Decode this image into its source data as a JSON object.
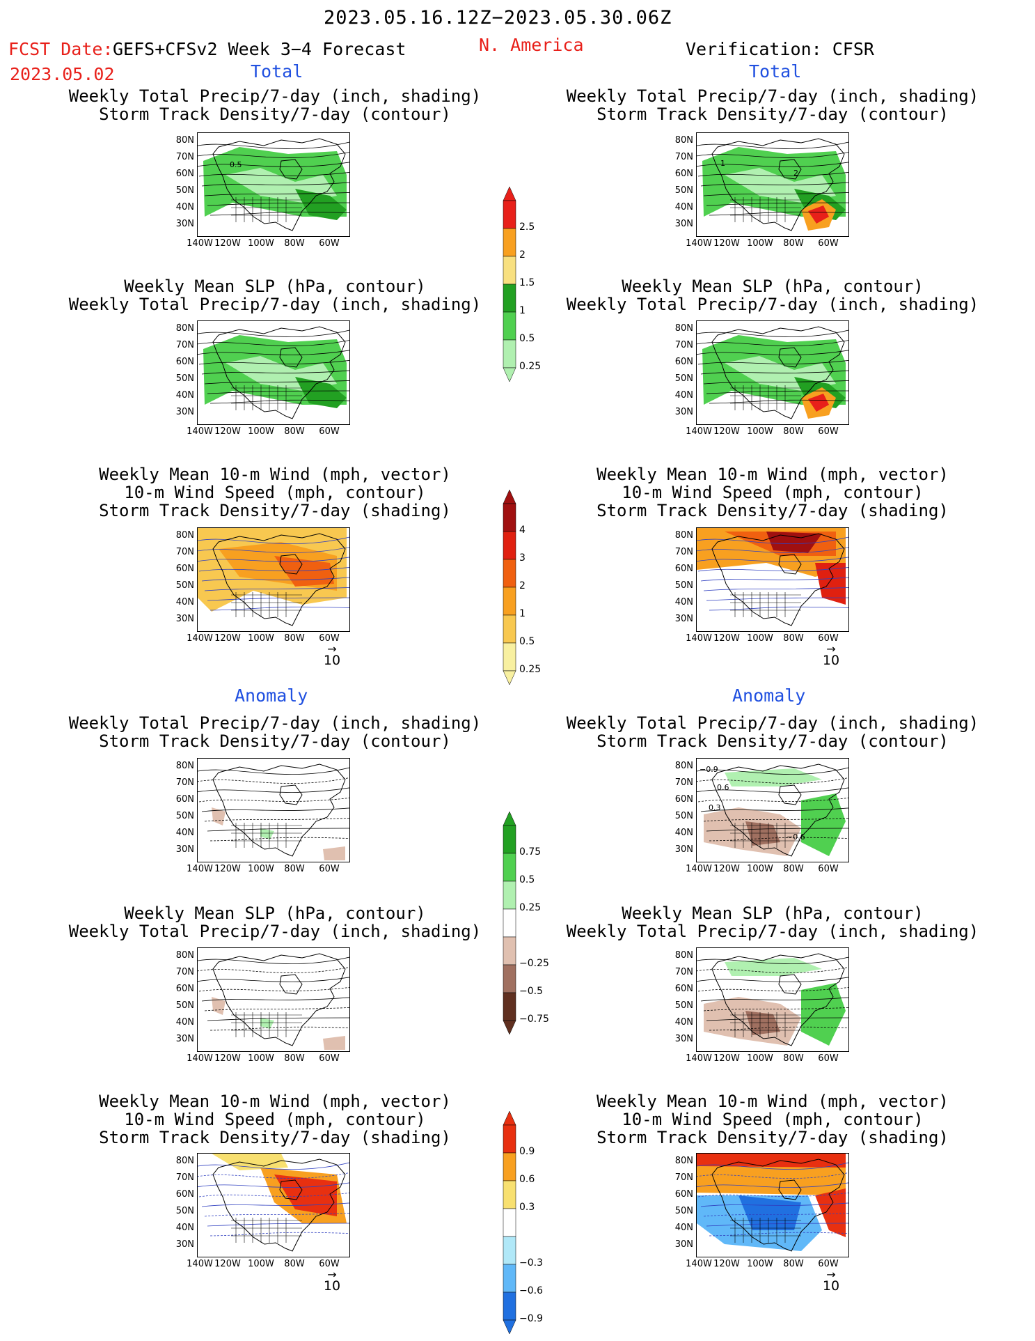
{
  "header": {
    "period": "2023.05.16.12Z−2023.05.30.06Z",
    "fcst_label": "FCST Date:",
    "model": "GEFS+CFSv2 Week 3−4 Forecast",
    "fcst_date": "2023.05.02",
    "region": "N. America",
    "verification": "Verification: CFSR"
  },
  "sections": {
    "total_left": "Total",
    "total_right": "Total",
    "anomaly_left": "Anomaly",
    "anomaly_right": "Anomaly"
  },
  "panel_titles": {
    "p1": [
      "Weekly Total Precip/7-day (inch, shading)",
      "Storm Track Density/7-day (contour)"
    ],
    "p2": [
      "Weekly Mean SLP (hPa, contour)",
      "Weekly Total Precip/7-day (inch, shading)"
    ],
    "p3": [
      "Weekly Mean 10-m Wind (mph, vector)",
      "10-m Wind Speed (mph, contour)",
      "Storm Track Density/7-day (shading)"
    ]
  },
  "axes": {
    "lat_labels": [
      "80N",
      "70N",
      "60N",
      "50N",
      "40N",
      "30N"
    ],
    "lon_labels": [
      "140W",
      "120W",
      "100W",
      "80W",
      "60W"
    ]
  },
  "vector_ref": "10",
  "colorbars": {
    "precip_total": {
      "labels": [
        "2.5",
        "2",
        "1.5",
        "1",
        "0.5",
        "0.25"
      ],
      "colors": [
        "#e8201a",
        "#f8a020",
        "#f8e080",
        "#22a022",
        "#50d050",
        "#b0f0b0"
      ]
    },
    "storm_total": {
      "labels": [
        "4",
        "3",
        "2",
        "1",
        "0.5",
        "0.25"
      ],
      "colors": [
        "#a01010",
        "#e02010",
        "#f06010",
        "#f8a020",
        "#f8c850",
        "#f8f0a0"
      ]
    },
    "precip_anom": {
      "labels": [
        "0.75",
        "0.5",
        "0.25",
        "−0.25",
        "−0.5",
        "−0.75"
      ],
      "colors": [
        "#22a022",
        "#50d050",
        "#b0f0b0",
        "#ffffff",
        "#e0c0b0",
        "#a07060",
        "#603020"
      ]
    },
    "storm_anom": {
      "labels": [
        "0.9",
        "0.6",
        "0.3",
        "−0.3",
        "−0.6",
        "−0.9"
      ],
      "colors": [
        "#e83010",
        "#f8a020",
        "#f8e070",
        "#ffffff",
        "#b0e8f8",
        "#60b8f8",
        "#2070e0"
      ]
    }
  },
  "contour_labels": {
    "left_p1": "0.5",
    "right_p1_a": "1",
    "right_p1_b": "2",
    "right_anom_p1_a": "−0.9",
    "right_anom_p1_b": "0.6",
    "right_anom_p1_c": "0.3",
    "right_anom_p1_d": "−0.6"
  }
}
